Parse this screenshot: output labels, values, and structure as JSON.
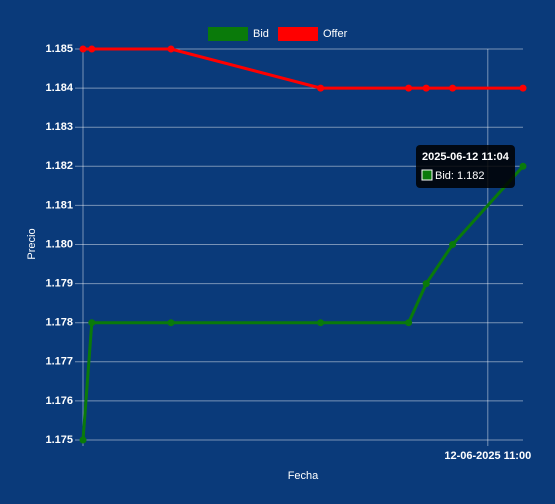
{
  "chart_data": {
    "type": "line",
    "x": [
      "2025-06-12 10:14",
      "2025-06-12 10:15",
      "2025-06-12 10:24",
      "2025-06-12 10:41",
      "2025-06-12 10:51",
      "2025-06-12 10:53",
      "2025-06-12 10:56",
      "2025-06-12 11:04"
    ],
    "series": [
      {
        "name": "Bid",
        "color": "#0a7a0a",
        "values": [
          1.175,
          1.178,
          1.178,
          1.178,
          1.178,
          1.179,
          1.18,
          1.182
        ]
      },
      {
        "name": "Offer",
        "color": "#ff0000",
        "values": [
          1.185,
          1.185,
          1.185,
          1.184,
          1.184,
          1.184,
          1.184,
          1.184
        ]
      }
    ],
    "xlabel": "Fecha",
    "ylabel": "Precio",
    "xlim": [
      "2025-06-12 10:14",
      "2025-06-12 11:04"
    ],
    "xticks": [
      {
        "value": "2025-06-12 11:00",
        "label": "12-06-2025 11:00"
      }
    ],
    "ylim": [
      1.175,
      1.185
    ],
    "yticks": [
      1.175,
      1.176,
      1.177,
      1.178,
      1.179,
      {
        "value": 1.18,
        "label": "1.180"
      },
      1.181,
      1.182,
      1.183,
      1.184,
      1.185
    ],
    "grid": true,
    "legend": "top",
    "tooltip": {
      "title": "2025-06-12 11:04",
      "label": "Bid: 1.182"
    }
  }
}
